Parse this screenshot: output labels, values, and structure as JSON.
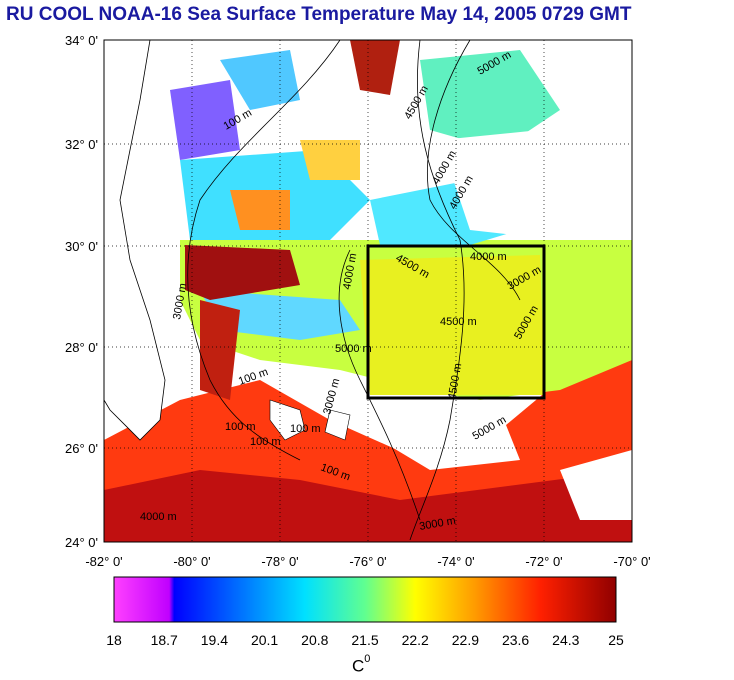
{
  "title": "RU COOL  NOAA-16 Sea Surface Temperature May 14, 2005 0729 GMT",
  "map": {
    "lat_labels": [
      "34° 0'",
      "32° 0'",
      "30° 0'",
      "28° 0'",
      "26° 0'",
      "24° 0'"
    ],
    "lon_labels": [
      "-82° 0'",
      "-80° 0'",
      "-78° 0'",
      "-76° 0'",
      "-74° 0'",
      "-72° 0'",
      "-70° 0'"
    ],
    "contour_labels": [
      "100 m",
      "4500 m",
      "5000 m",
      "4000 m",
      "4000 m",
      "4000 m",
      "4500 m",
      "5000 m",
      "3000 m",
      "100 m",
      "100 m",
      "100 m",
      "3000 m",
      "4500 m",
      "5000 m",
      "100 m",
      "100 m",
      "4000 m",
      "3000 m",
      "5000 m",
      "4500 m",
      "3000 m",
      "4000 m"
    ],
    "study_box": {
      "lon_min": -76,
      "lon_max": -72,
      "lat_min": 27,
      "lat_max": 30
    }
  },
  "colorbar": {
    "labels": [
      "18",
      "18.7",
      "19.4",
      "20.1",
      "20.8",
      "21.5",
      "22.2",
      "22.9",
      "23.6",
      "24.3",
      "25"
    ],
    "unit": "C",
    "unit_sup": "0",
    "colors": [
      "#ff00ff",
      "#0000ff",
      "#0080ff",
      "#00ffff",
      "#80ff80",
      "#ffff00",
      "#ffa000",
      "#ff3000",
      "#a00000"
    ]
  }
}
